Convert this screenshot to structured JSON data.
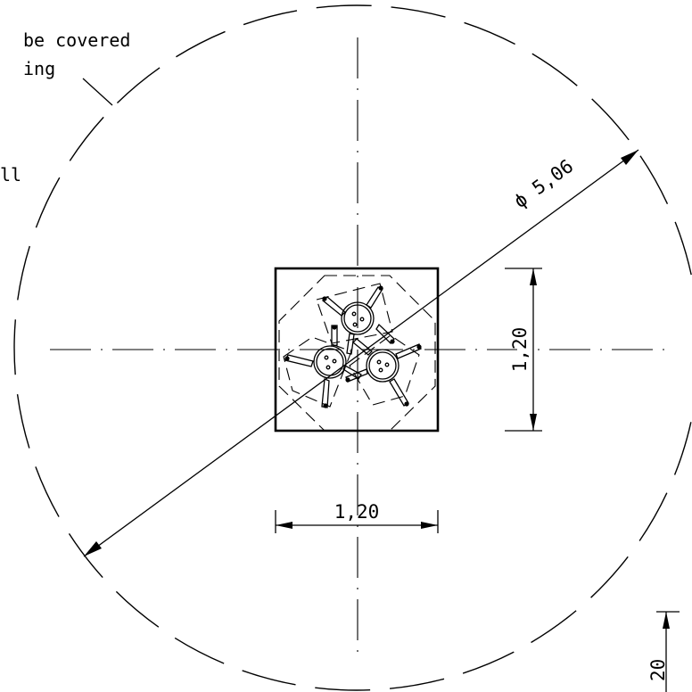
{
  "notes": {
    "line1": "be covered",
    "line2": "ing",
    "line3": "ll"
  },
  "dimensions": {
    "diameter": "ϕ 5,06",
    "width": "1,20",
    "height": "1,20",
    "edge": "20"
  }
}
